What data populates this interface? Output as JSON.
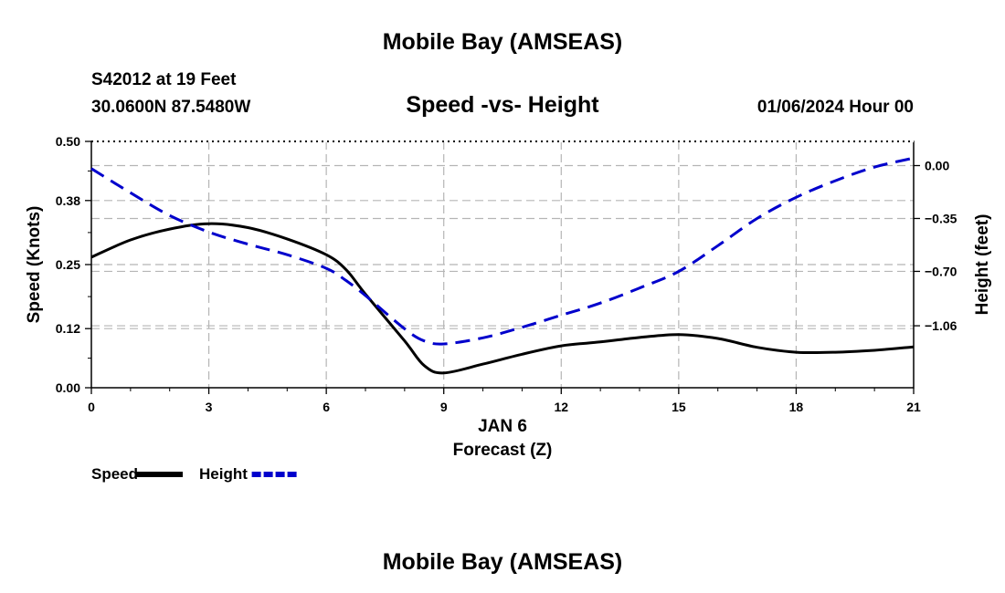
{
  "page": {
    "title_top": "Mobile Bay (AMSEAS)",
    "title_bottom": "Mobile Bay (AMSEAS)",
    "station_line": "S42012 at 19 Feet",
    "coords_line": "30.0600N  87.5480W",
    "chart_title": "Speed -vs- Height",
    "date_line": "01/06/2024 Hour 00"
  },
  "chart_data": {
    "type": "line",
    "title": "Speed -vs- Height",
    "xlabel": "Forecast (Z)",
    "xlabel_date": "JAN 6",
    "ylabel": "Speed (Knots)",
    "ylabel_right": "Height (feet)",
    "xlim": [
      0,
      21
    ],
    "ylim": [
      0,
      0.5
    ],
    "ylim_right": [
      -1.47,
      0.16
    ],
    "x_ticks": [
      "0",
      "3",
      "6",
      "9",
      "12",
      "15",
      "18",
      "21"
    ],
    "y_ticks": [
      "0.00",
      "0.12",
      "0.25",
      "0.38",
      "0.50"
    ],
    "y_ticks_right": [
      "0.00",
      "-0.35",
      "-0.70",
      "-1.06"
    ],
    "grid": true,
    "legend_position": "bottom-left",
    "series": [
      {
        "name": "Speed",
        "axis": "left",
        "color": "#000000",
        "style": "solid",
        "x": [
          0,
          1,
          2,
          3,
          4,
          5,
          6,
          6.5,
          7,
          8,
          8.5,
          9,
          10,
          11,
          12,
          13,
          14,
          15,
          16,
          17,
          18,
          19,
          20,
          21
        ],
        "values": [
          0.265,
          0.3,
          0.322,
          0.333,
          0.325,
          0.302,
          0.27,
          0.24,
          0.19,
          0.095,
          0.045,
          0.03,
          0.048,
          0.068,
          0.085,
          0.093,
          0.102,
          0.108,
          0.1,
          0.082,
          0.072,
          0.072,
          0.076,
          0.083
        ]
      },
      {
        "name": "Height",
        "axis": "right",
        "color": "#0000cc",
        "style": "dashed",
        "x": [
          0,
          1,
          2,
          3,
          4,
          5,
          6,
          6.5,
          7,
          8,
          8.5,
          9,
          10,
          11,
          12,
          13,
          14,
          15,
          16,
          17,
          18,
          19,
          20,
          21
        ],
        "values": [
          -0.02,
          -0.18,
          -0.33,
          -0.44,
          -0.52,
          -0.59,
          -0.68,
          -0.76,
          -0.86,
          -1.08,
          -1.16,
          -1.18,
          -1.14,
          -1.07,
          -0.99,
          -0.91,
          -0.81,
          -0.7,
          -0.53,
          -0.35,
          -0.21,
          -0.1,
          -0.01,
          0.05
        ]
      }
    ]
  }
}
